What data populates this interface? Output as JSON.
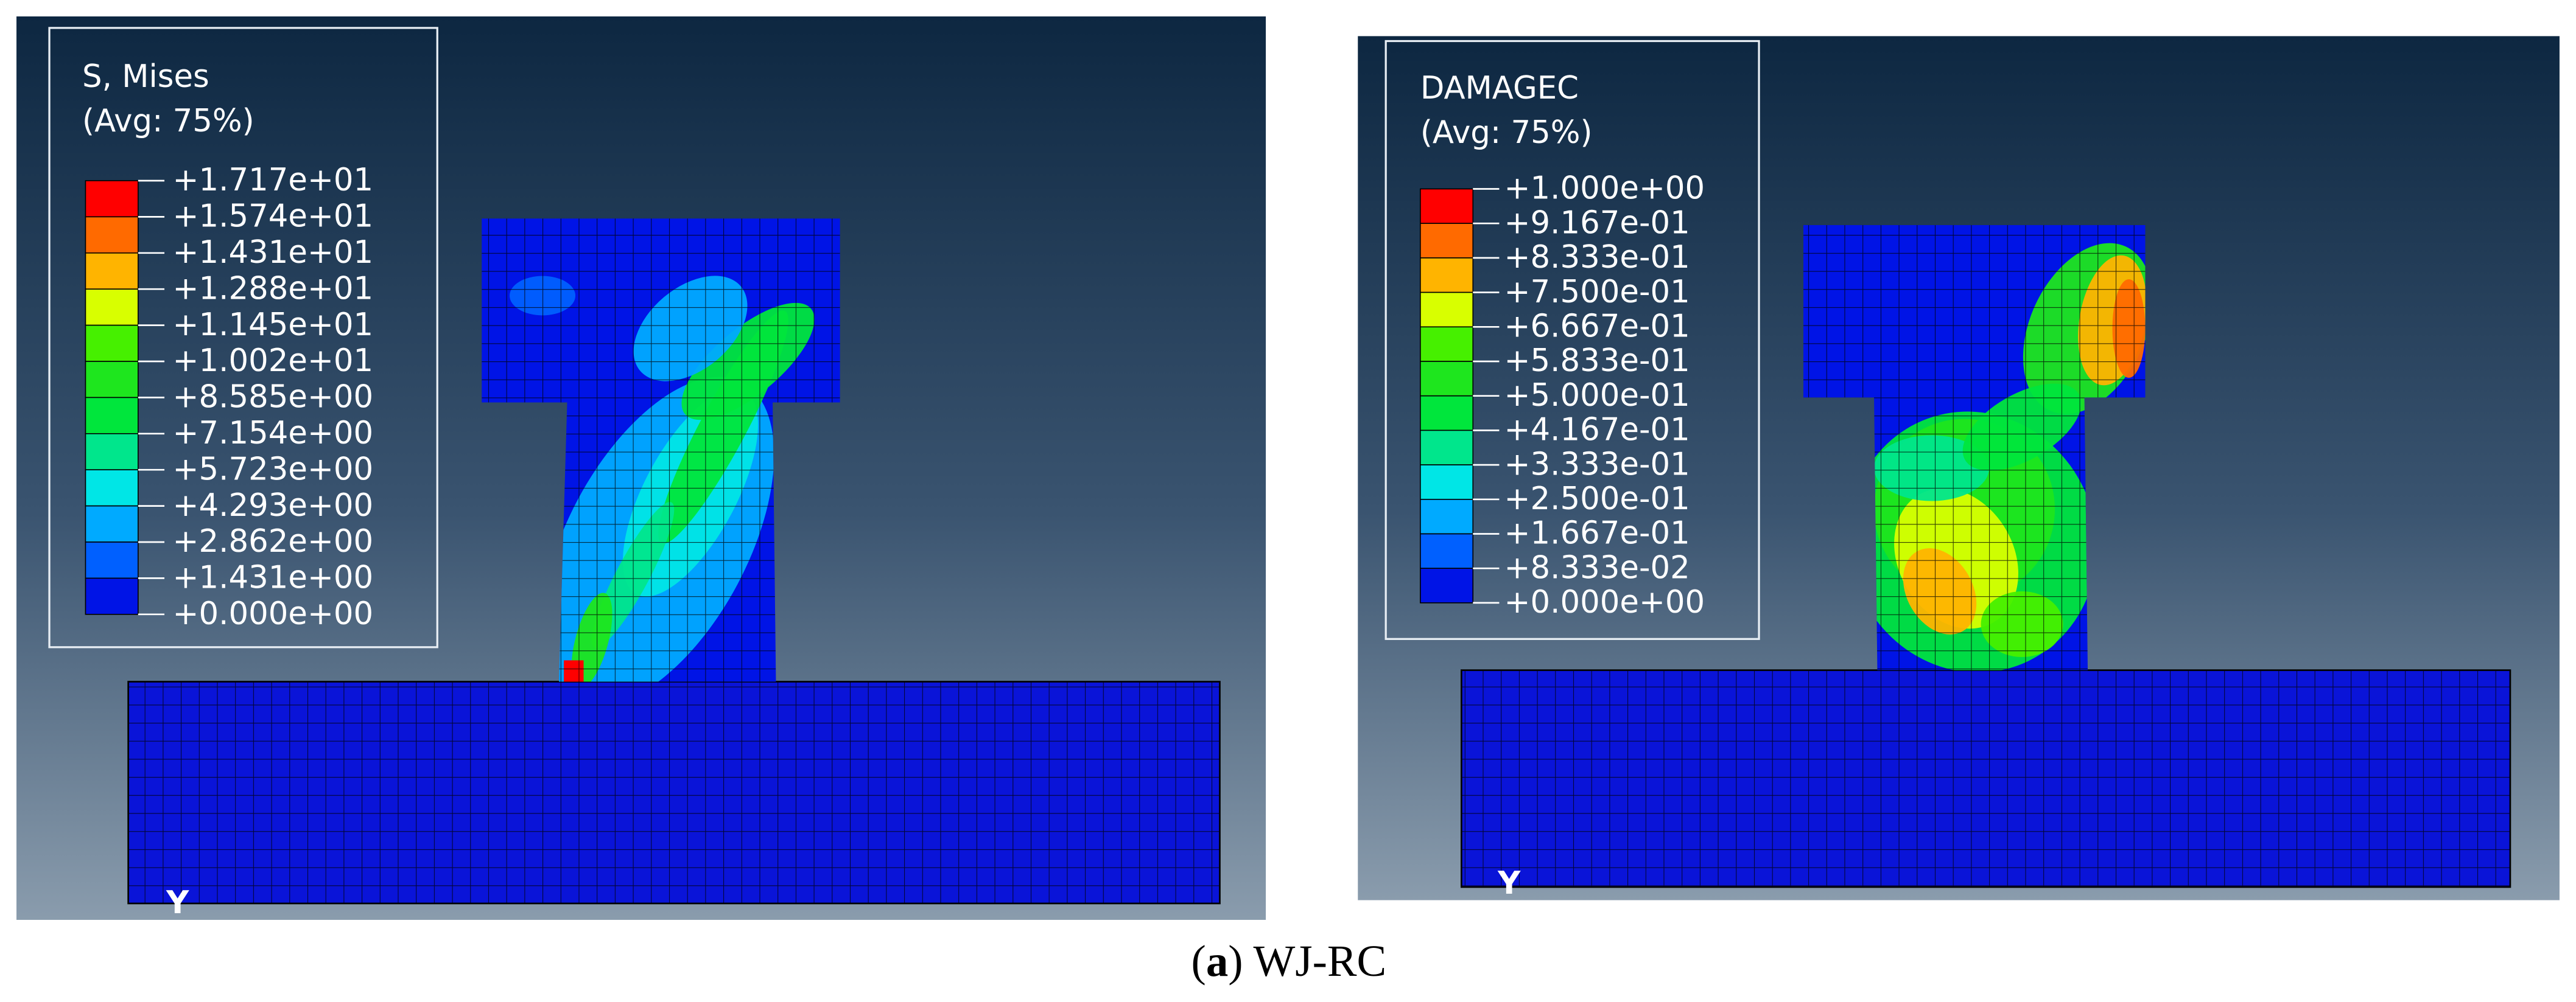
{
  "panels": [
    {
      "legend": {
        "title": "S, Mises",
        "subtitle": "(Avg: 75%)",
        "labels": [
          "+1.717e+01",
          "+1.574e+01",
          "+1.431e+01",
          "+1.288e+01",
          "+1.145e+01",
          "+1.002e+01",
          "+8.585e+00",
          "+7.154e+00",
          "+5.723e+00",
          "+4.293e+00",
          "+2.862e+00",
          "+1.431e+00",
          "+0.000e+00"
        ]
      },
      "axis_label": "Y"
    },
    {
      "legend": {
        "title": "DAMAGEC",
        "subtitle": "(Avg: 75%)",
        "labels": [
          "+1.000e+00",
          "+9.167e-01",
          "+8.333e-01",
          "+7.500e-01",
          "+6.667e-01",
          "+5.833e-01",
          "+5.000e-01",
          "+4.167e-01",
          "+3.333e-01",
          "+2.500e-01",
          "+1.667e-01",
          "+8.333e-02",
          "+0.000e+00"
        ]
      },
      "axis_label": "Y"
    }
  ],
  "legend_colors": [
    "#ff0000",
    "#ff6a00",
    "#ffb400",
    "#d8ff00",
    "#46f000",
    "#1ee61e",
    "#00e63c",
    "#00e68c",
    "#00e6e6",
    "#00aaff",
    "#0060ff",
    "#0014e6"
  ],
  "caption": {
    "prefix": "(",
    "label": "a",
    "text": ") WJ-RC"
  }
}
